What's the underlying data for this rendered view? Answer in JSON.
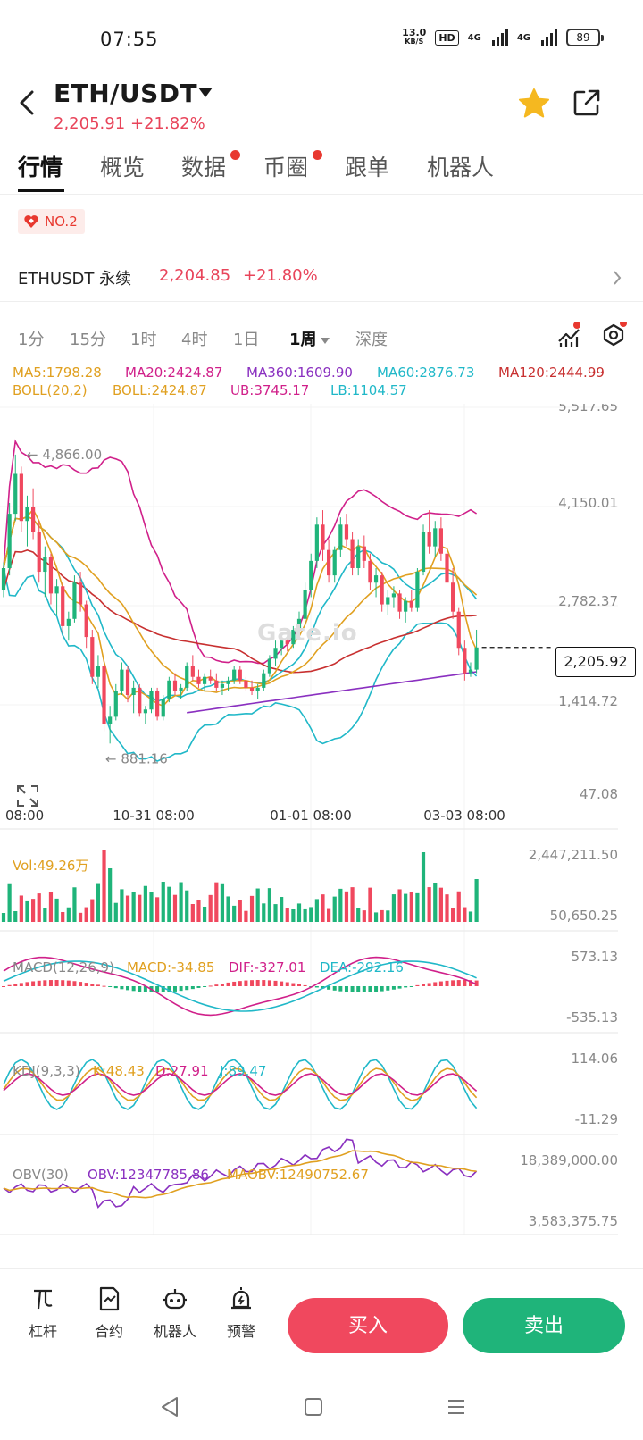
{
  "status_bar": {
    "time": "07:55",
    "net_speed_value": "13.0",
    "net_speed_unit": "KB/S",
    "hd_label": "HD",
    "signal1_label": "4G",
    "signal2_label": "4G",
    "battery": "89"
  },
  "header": {
    "pair": "ETH/USDT",
    "price": "2,205.91",
    "change": "+21.82%"
  },
  "tabs": [
    {
      "label": "行情",
      "active": true,
      "dot": false
    },
    {
      "label": "概览",
      "active": false,
      "dot": false
    },
    {
      "label": "数据",
      "active": false,
      "dot": true
    },
    {
      "label": "币圈",
      "active": false,
      "dot": true
    },
    {
      "label": "跟单",
      "active": false,
      "dot": false
    },
    {
      "label": "机器人",
      "active": false,
      "dot": false
    }
  ],
  "rank_badge": "NO.2",
  "perpetual": {
    "name": "ETHUSDT 永续",
    "price": "2,204.85",
    "change": "+21.80%"
  },
  "intervals": [
    {
      "label": "1分",
      "active": false
    },
    {
      "label": "15分",
      "active": false
    },
    {
      "label": "1时",
      "active": false
    },
    {
      "label": "4时",
      "active": false
    },
    {
      "label": "1日",
      "active": false
    },
    {
      "label": "1周",
      "active": true
    },
    {
      "label": "深度",
      "active": false
    }
  ],
  "legends": {
    "ma5": "MA5:1798.28",
    "ma20": "MA20:2424.87",
    "ma360": "MA360:1609.90",
    "ma60": "MA60:2876.73",
    "ma120": "MA120:2444.99",
    "boll": "BOLL(20,2)",
    "boll_mid": "BOLL:2424.87",
    "ub": "UB:3745.17",
    "lb": "LB:1104.57",
    "vol": "Vol:49.26万",
    "macd_title": "MACD(12,26,9)",
    "macd": "MACD:-34.85",
    "dif": "DIF:-327.01",
    "dea": "DEA:-292.16",
    "kdj_title": "KDJ(9,3,3)",
    "k": "K:48.43",
    "d": "D:27.91",
    "j": "J:89.47",
    "obv_title": "OBV(30)",
    "obv": "OBV:12347785.86",
    "maobv": "MAOBV:12490752.67"
  },
  "watermark": "Gate.io",
  "last_price_tag": "2,205.92",
  "chart_data": {
    "type": "candlestick",
    "interval": "1周",
    "price_axis": {
      "ticks": [
        "5,517.65",
        "4,150.01",
        "2,782.37",
        "1,414.72",
        "47.08"
      ],
      "range": [
        47.08,
        5517.65
      ]
    },
    "time_axis": {
      "ticks": [
        "08:00",
        "10-31 08:00",
        "01-01 08:00",
        "03-03 08:00"
      ]
    },
    "annotations": {
      "high": "4,866.00",
      "low": "881.16",
      "high_value": 4866.0,
      "low_value": 881.16,
      "last": 2205.92
    },
    "volume_axis": [
      "2,447,211.50",
      "50,650.25"
    ],
    "macd_axis": [
      "573.13",
      "-535.13"
    ],
    "kdj_axis": [
      "114.06",
      "-11.29"
    ],
    "obv_axis": [
      "18,389,000.00",
      "3,583,375.75"
    ],
    "ohlc": [
      [
        3000,
        3380,
        2900,
        3300
      ],
      [
        3300,
        4200,
        3200,
        4050
      ],
      [
        4050,
        4866,
        3950,
        4600
      ],
      [
        4600,
        4700,
        3800,
        3950
      ],
      [
        3950,
        4300,
        3600,
        4150
      ],
      [
        4150,
        4400,
        3700,
        3800
      ],
      [
        3800,
        3950,
        3100,
        3250
      ],
      [
        3250,
        3600,
        2900,
        3450
      ],
      [
        3450,
        3500,
        2800,
        2950
      ],
      [
        2950,
        3150,
        2650,
        3050
      ],
      [
        3050,
        3100,
        2400,
        2500
      ],
      [
        2500,
        2700,
        2300,
        2600
      ],
      [
        2600,
        3200,
        2550,
        3100
      ],
      [
        3100,
        3250,
        2700,
        2800
      ],
      [
        2800,
        2850,
        2200,
        2350
      ],
      [
        2350,
        2450,
        1700,
        1800
      ],
      [
        1800,
        2100,
        1650,
        1950
      ],
      [
        1950,
        2000,
        1050,
        1150
      ],
      [
        1150,
        1400,
        881,
        1250
      ],
      [
        1250,
        1700,
        1200,
        1600
      ],
      [
        1600,
        2000,
        1550,
        1900
      ],
      [
        1900,
        1950,
        1450,
        1550
      ],
      [
        1550,
        1750,
        1300,
        1650
      ],
      [
        1650,
        1700,
        1250,
        1300
      ],
      [
        1300,
        1400,
        1150,
        1350
      ],
      [
        1350,
        1650,
        1300,
        1600
      ],
      [
        1600,
        1650,
        1200,
        1250
      ],
      [
        1250,
        1550,
        1200,
        1500
      ],
      [
        1500,
        1800,
        1450,
        1750
      ],
      [
        1750,
        1850,
        1550,
        1600
      ],
      [
        1600,
        1700,
        1500,
        1650
      ],
      [
        1650,
        2000,
        1600,
        1950
      ],
      [
        1950,
        2100,
        1750,
        1800
      ],
      [
        1800,
        1900,
        1650,
        1700
      ],
      [
        1700,
        1850,
        1600,
        1800
      ],
      [
        1800,
        1900,
        1700,
        1750
      ],
      [
        1750,
        1850,
        1600,
        1650
      ],
      [
        1650,
        1750,
        1550,
        1700
      ],
      [
        1700,
        1800,
        1600,
        1750
      ],
      [
        1750,
        1950,
        1700,
        1900
      ],
      [
        1900,
        1950,
        1700,
        1750
      ],
      [
        1750,
        1800,
        1600,
        1650
      ],
      [
        1650,
        1750,
        1550,
        1600
      ],
      [
        1600,
        1700,
        1500,
        1650
      ],
      [
        1650,
        1900,
        1600,
        1850
      ],
      [
        1850,
        2100,
        1800,
        2050
      ],
      [
        2050,
        2300,
        1950,
        2200
      ],
      [
        2200,
        2400,
        2100,
        2300
      ],
      [
        2300,
        2350,
        2150,
        2250
      ],
      [
        2250,
        2500,
        2200,
        2450
      ],
      [
        2450,
        2700,
        2350,
        2600
      ],
      [
        2600,
        3100,
        2550,
        3000
      ],
      [
        3000,
        3500,
        2900,
        3400
      ],
      [
        3400,
        4000,
        3300,
        3900
      ],
      [
        3900,
        4100,
        3400,
        3550
      ],
      [
        3550,
        3700,
        3100,
        3200
      ],
      [
        3200,
        3600,
        3100,
        3550
      ],
      [
        3550,
        4000,
        3450,
        3900
      ],
      [
        3900,
        4050,
        3600,
        3700
      ],
      [
        3700,
        3800,
        3200,
        3300
      ],
      [
        3300,
        3700,
        3200,
        3600
      ],
      [
        3600,
        3750,
        3300,
        3400
      ],
      [
        3400,
        3500,
        3000,
        3100
      ],
      [
        3100,
        3300,
        2900,
        3200
      ],
      [
        3200,
        3250,
        2700,
        2800
      ],
      [
        2800,
        3000,
        2650,
        2900
      ],
      [
        2900,
        3050,
        2750,
        2950
      ],
      [
        2950,
        3000,
        2600,
        2700
      ],
      [
        2700,
        2900,
        2550,
        2850
      ],
      [
        2850,
        3000,
        2700,
        2750
      ],
      [
        2750,
        3300,
        2700,
        3250
      ],
      [
        3250,
        3900,
        3200,
        3800
      ],
      [
        3800,
        4100,
        3500,
        3600
      ],
      [
        3600,
        3950,
        3450,
        3850
      ],
      [
        3850,
        4000,
        3400,
        3500
      ],
      [
        3500,
        3600,
        3000,
        3100
      ],
      [
        3100,
        3300,
        2600,
        2700
      ],
      [
        2700,
        2750,
        2100,
        2200
      ],
      [
        2200,
        2300,
        1750,
        1850
      ],
      [
        1850,
        2000,
        1800,
        1900
      ],
      [
        1900,
        2450,
        1850,
        2205.92
      ]
    ]
  }
}
